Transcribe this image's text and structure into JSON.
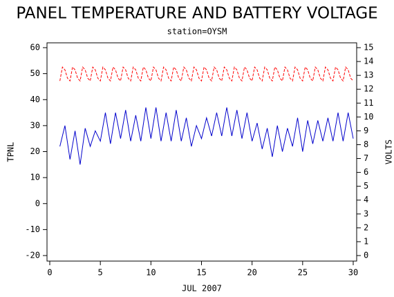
{
  "chart_data": {
    "type": "line",
    "title": "PANEL TEMPERATURE AND BATTERY VOLTAGE",
    "subtitle": "station=OYSM",
    "xlabel": "JUL 2007",
    "ylabel": "TPNL",
    "y2label": "VOLTS",
    "xlim": [
      0,
      30
    ],
    "xticks": [
      0,
      5,
      10,
      15,
      20,
      25,
      30
    ],
    "ylim": [
      -20,
      60
    ],
    "yticks": [
      -20,
      -10,
      0,
      10,
      20,
      30,
      40,
      50,
      60
    ],
    "y2lim": [
      0,
      15
    ],
    "y2ticks": [
      0,
      1,
      2,
      3,
      4,
      5,
      6,
      7,
      8,
      9,
      10,
      11,
      12,
      13,
      14,
      15
    ],
    "x": [
      1,
      1.25,
      1.5,
      1.75,
      2,
      2.25,
      2.5,
      2.75,
      3,
      3.25,
      3.5,
      3.75,
      4,
      4.25,
      4.5,
      4.75,
      5,
      5.25,
      5.5,
      5.75,
      6,
      6.25,
      6.5,
      6.75,
      7,
      7.25,
      7.5,
      7.75,
      8,
      8.25,
      8.5,
      8.75,
      9,
      9.25,
      9.5,
      9.75,
      10,
      10.25,
      10.5,
      10.75,
      11,
      11.25,
      11.5,
      11.75,
      12,
      12.25,
      12.5,
      12.75,
      13,
      13.25,
      13.5,
      13.75,
      14,
      14.25,
      14.5,
      14.75,
      15,
      15.25,
      15.5,
      15.75,
      16,
      16.25,
      16.5,
      16.75,
      17,
      17.25,
      17.5,
      17.75,
      18,
      18.25,
      18.5,
      18.75,
      19,
      19.25,
      19.5,
      19.75,
      20,
      20.25,
      20.5,
      20.75,
      21,
      21.25,
      21.5,
      21.75,
      22,
      22.25,
      22.5,
      22.75,
      23,
      23.25,
      23.5,
      23.75,
      24,
      24.25,
      24.5,
      24.75,
      25,
      25.25,
      25.5,
      25.75,
      26,
      26.25,
      26.5,
      26.75,
      27,
      27.25,
      27.5,
      27.75,
      28,
      28.25,
      28.5,
      28.75,
      29,
      29.25,
      29.5,
      29.75,
      30
    ],
    "series": [
      {
        "name": "TPNL",
        "color": "#0000cc",
        "dash": false,
        "values": [
          22,
          26,
          30,
          23.5,
          17,
          22.5,
          28,
          21.5,
          15,
          22,
          29,
          25.5,
          22,
          25,
          28,
          26,
          24,
          29.5,
          35,
          29,
          23,
          29,
          35,
          30,
          25,
          30.5,
          36,
          30,
          24,
          29,
          34,
          29,
          24,
          30.5,
          37,
          31,
          25,
          31,
          37,
          30.5,
          24,
          29.5,
          35,
          29.5,
          24,
          30,
          36,
          30,
          24,
          28.5,
          33,
          27.5,
          22,
          26,
          30,
          27.5,
          25,
          29,
          33,
          29.5,
          26,
          30.5,
          35,
          30.5,
          26,
          31.5,
          37,
          31.5,
          26,
          31,
          36,
          30.5,
          25,
          30,
          35,
          29.5,
          24,
          27.5,
          31,
          26,
          21,
          25,
          29,
          23.5,
          18,
          24,
          30,
          25,
          20,
          24.5,
          29,
          25.5,
          22,
          27.5,
          33,
          26.5,
          20,
          26,
          32,
          27.5,
          23,
          27.5,
          32,
          28,
          24,
          28.5,
          33,
          28.5,
          24,
          29.5,
          35,
          29.5,
          24,
          29.5,
          35,
          30,
          25
        ]
      },
      {
        "name": "VOLTS",
        "color": "#ff0000",
        "dash": true,
        "axis": "y2",
        "values": [
          12.6,
          13.6,
          13.4,
          12.8,
          12.6,
          13.6,
          13.4,
          12.8,
          12.6,
          13.6,
          13.4,
          12.8,
          12.6,
          13.6,
          13.4,
          12.8,
          12.6,
          13.6,
          13.4,
          12.8,
          12.6,
          13.6,
          13.4,
          12.8,
          12.6,
          13.6,
          13.4,
          12.8,
          12.6,
          13.6,
          13.4,
          12.8,
          12.6,
          13.6,
          13.4,
          12.8,
          12.6,
          13.6,
          13.4,
          12.8,
          12.6,
          13.6,
          13.4,
          12.8,
          12.6,
          13.6,
          13.4,
          12.8,
          12.6,
          13.6,
          13.4,
          12.8,
          12.6,
          13.6,
          13.4,
          12.8,
          12.6,
          13.6,
          13.4,
          12.8,
          12.6,
          13.6,
          13.4,
          12.8,
          12.6,
          13.6,
          13.4,
          12.8,
          12.6,
          13.6,
          13.4,
          12.8,
          12.6,
          13.6,
          13.4,
          12.8,
          12.6,
          13.6,
          13.4,
          12.8,
          12.6,
          13.6,
          13.4,
          12.8,
          12.6,
          13.6,
          13.4,
          12.8,
          12.6,
          13.6,
          13.4,
          12.8,
          12.6,
          13.6,
          13.4,
          12.8,
          12.6,
          13.6,
          13.4,
          12.8,
          12.6,
          13.6,
          13.4,
          12.8,
          12.6,
          13.6,
          13.4,
          12.8,
          12.6,
          13.6,
          13.4,
          12.8,
          12.6,
          13.6,
          13.4,
          12.8,
          12.6
        ]
      }
    ]
  }
}
